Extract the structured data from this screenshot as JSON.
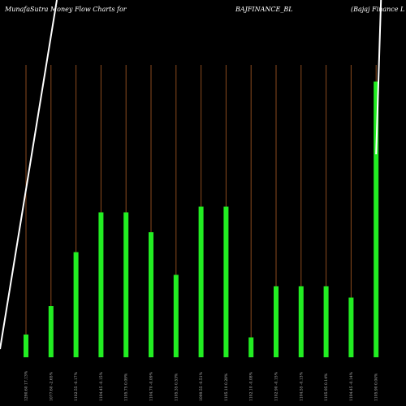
{
  "header": {
    "brand": "MunafaSutra  Money Flow  Charts for",
    "symbol": "BAJFINANCE_BL",
    "company": "(Bajaj Finance  L"
  },
  "colors": {
    "background": "#000000",
    "bar": "#22ee22",
    "stem": "#8a4a1e",
    "price_line": "#ffffff"
  },
  "chart_data": {
    "type": "bar",
    "title": "MunafaSutra  Money Flow  Charts for BAJFINANCE_BL (Bajaj Finance  L",
    "categories": [
      "1290.60 17.13%",
      "1077.60 -2.65%",
      "1102.55 -0.17%",
      "1104.45 -0.15%",
      "1105.75 0.09%",
      "1104.70 -0.09%",
      "1105.35 0.53%",
      "1099.55 -0.51%",
      "1105.10 0.28%",
      "1102.10 -0.08%",
      "1102.90 -0.15%",
      "1104.55 -0.13%",
      "1105.95 0.14%",
      "1104.45 -0.14%",
      "1105.90 0.04%"
    ],
    "values": [
      8,
      18,
      37,
      51,
      51,
      44,
      29,
      53,
      53,
      7,
      25,
      25,
      25,
      21,
      97
    ],
    "ylim": [
      0,
      100
    ],
    "grid": false,
    "legend": "none"
  }
}
